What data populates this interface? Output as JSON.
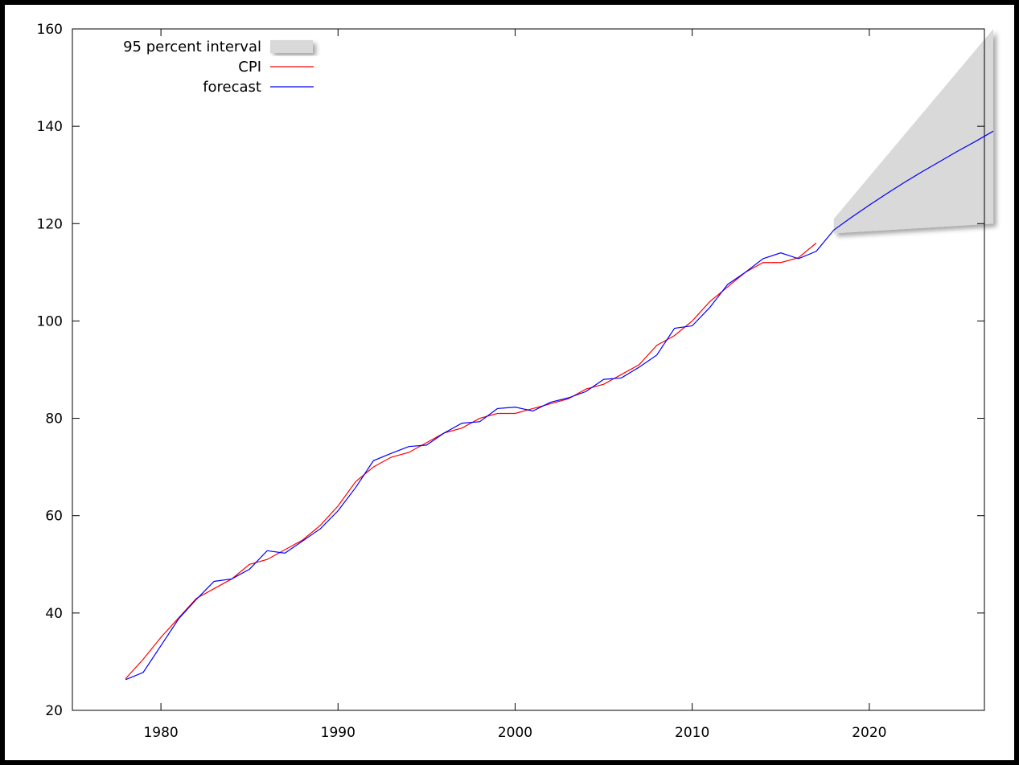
{
  "chart_data": {
    "type": "line",
    "title": "",
    "xlabel": "",
    "ylabel": "",
    "xlim": [
      1975,
      2026.5
    ],
    "ylim": [
      20,
      160
    ],
    "x_ticks": [
      1980,
      1990,
      2000,
      2010,
      2020
    ],
    "y_ticks": [
      20,
      40,
      60,
      80,
      100,
      120,
      140,
      160
    ],
    "grid": false,
    "legend_position": "top-left",
    "colors": {
      "cpi": "#ff0000",
      "forecast": "#0000ff",
      "interval": "#d9d9d9"
    },
    "legend": [
      {
        "label": "95 percent interval",
        "kind": "band",
        "color": "#d9d9d9"
      },
      {
        "label": "CPI",
        "kind": "line",
        "color": "#ff0000"
      },
      {
        "label": "forecast",
        "kind": "line",
        "color": "#0000ff"
      }
    ],
    "series": [
      {
        "name": "CPI",
        "color": "#ff0000",
        "x": [
          1978,
          1979,
          1980,
          1981,
          1982,
          1983,
          1984,
          1985,
          1986,
          1987,
          1988,
          1989,
          1990,
          1991,
          1992,
          1993,
          1994,
          1995,
          1996,
          1997,
          1998,
          1999,
          2000,
          2001,
          2002,
          2003,
          2004,
          2005,
          2006,
          2007,
          2008,
          2009,
          2010,
          2011,
          2012,
          2013,
          2014,
          2015,
          2016,
          2017
        ],
        "y": [
          26.5,
          30.5,
          35.0,
          39.0,
          43.0,
          45.0,
          47.0,
          50.0,
          51.0,
          53.0,
          55.0,
          58.0,
          62.0,
          67.0,
          70.0,
          72.0,
          73.0,
          75.0,
          77.0,
          78.0,
          80.0,
          81.0,
          81.0,
          82.0,
          83.0,
          84.0,
          86.0,
          87.0,
          89.0,
          91.0,
          95.0,
          97.0,
          100.0,
          104.0,
          107.0,
          110.0,
          112.0,
          112.0,
          113.0,
          116.0
        ]
      },
      {
        "name": "forecast",
        "color": "#0000ff",
        "x": [
          1978,
          1979,
          1980,
          1981,
          1982,
          1983,
          1984,
          1985,
          1986,
          1987,
          1988,
          1989,
          1990,
          1991,
          1992,
          1993,
          1994,
          1995,
          1996,
          1997,
          1998,
          1999,
          2000,
          2001,
          2002,
          2003,
          2004,
          2005,
          2006,
          2007,
          2008,
          2009,
          2010,
          2011,
          2012,
          2013,
          2014,
          2015,
          2016,
          2017,
          2018,
          2019,
          2020,
          2021,
          2022,
          2023,
          2024,
          2025,
          2026,
          2027
        ],
        "y": [
          26.3,
          27.8,
          33.3,
          38.8,
          42.8,
          46.5,
          47.0,
          49.0,
          52.8,
          52.3,
          54.8,
          57.3,
          61.0,
          65.8,
          71.3,
          72.8,
          74.2,
          74.5,
          77.0,
          79.0,
          79.3,
          82.0,
          82.3,
          81.5,
          83.3,
          84.2,
          85.5,
          88.0,
          88.3,
          90.5,
          93.0,
          98.5,
          99.0,
          102.8,
          107.5,
          110.0,
          112.8,
          114.0,
          112.8,
          114.3,
          118.7,
          121.3,
          123.8,
          126.2,
          128.5,
          130.7,
          132.8,
          134.9,
          136.9,
          139.0
        ]
      }
    ],
    "interval": {
      "name": "95 percent interval",
      "x": [
        2018,
        2027
      ],
      "upper": [
        121.0,
        160.0
      ],
      "lower": [
        118.0,
        120.0
      ]
    }
  }
}
